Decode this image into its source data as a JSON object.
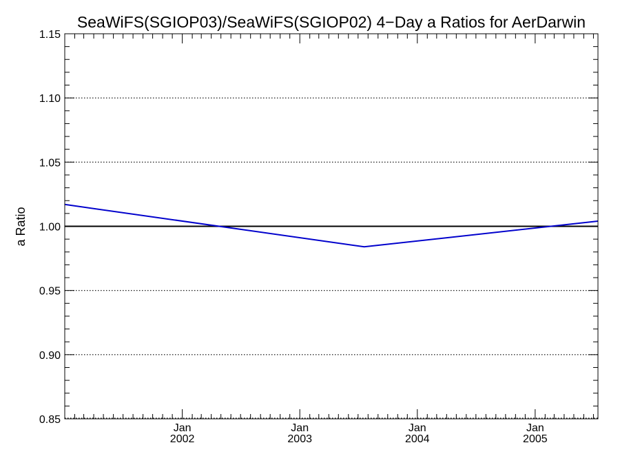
{
  "chart_data": {
    "type": "line",
    "title": "SeaWiFS(SGIOP03)/SeaWiFS(SGIOP02) 4−Day a Ratios for AerDarwin",
    "xlabel": "",
    "ylabel": "a Ratio",
    "xlim": [
      "2001-01-01",
      "2005-07-15"
    ],
    "ylim": [
      0.85,
      1.15
    ],
    "y_ticks": [
      0.85,
      0.9,
      0.95,
      1.0,
      1.05,
      1.1,
      1.15
    ],
    "y_tick_labels": [
      "0.85",
      "0.90",
      "0.95",
      "1.00",
      "1.05",
      "1.10",
      "1.15"
    ],
    "y_gridlines": [
      0.9,
      0.95,
      1.05,
      1.1
    ],
    "grid_style": "dotted",
    "reference_line": 1.0,
    "x_ticks": [
      "2002-01-01",
      "2003-01-01",
      "2004-01-01",
      "2005-01-01"
    ],
    "x_tick_labels": [
      {
        "month": "Jan",
        "year": "2002"
      },
      {
        "month": "Jan",
        "year": "2003"
      },
      {
        "month": "Jan",
        "year": "2004"
      },
      {
        "month": "Jan",
        "year": "2005"
      }
    ],
    "series": [
      {
        "color": "#0000cc",
        "x": [
          "2001-01-01",
          "2003-07-20",
          "2005-07-15"
        ],
        "y": [
          1.017,
          0.984,
          1.004
        ]
      }
    ],
    "reference_color": "#000000"
  }
}
